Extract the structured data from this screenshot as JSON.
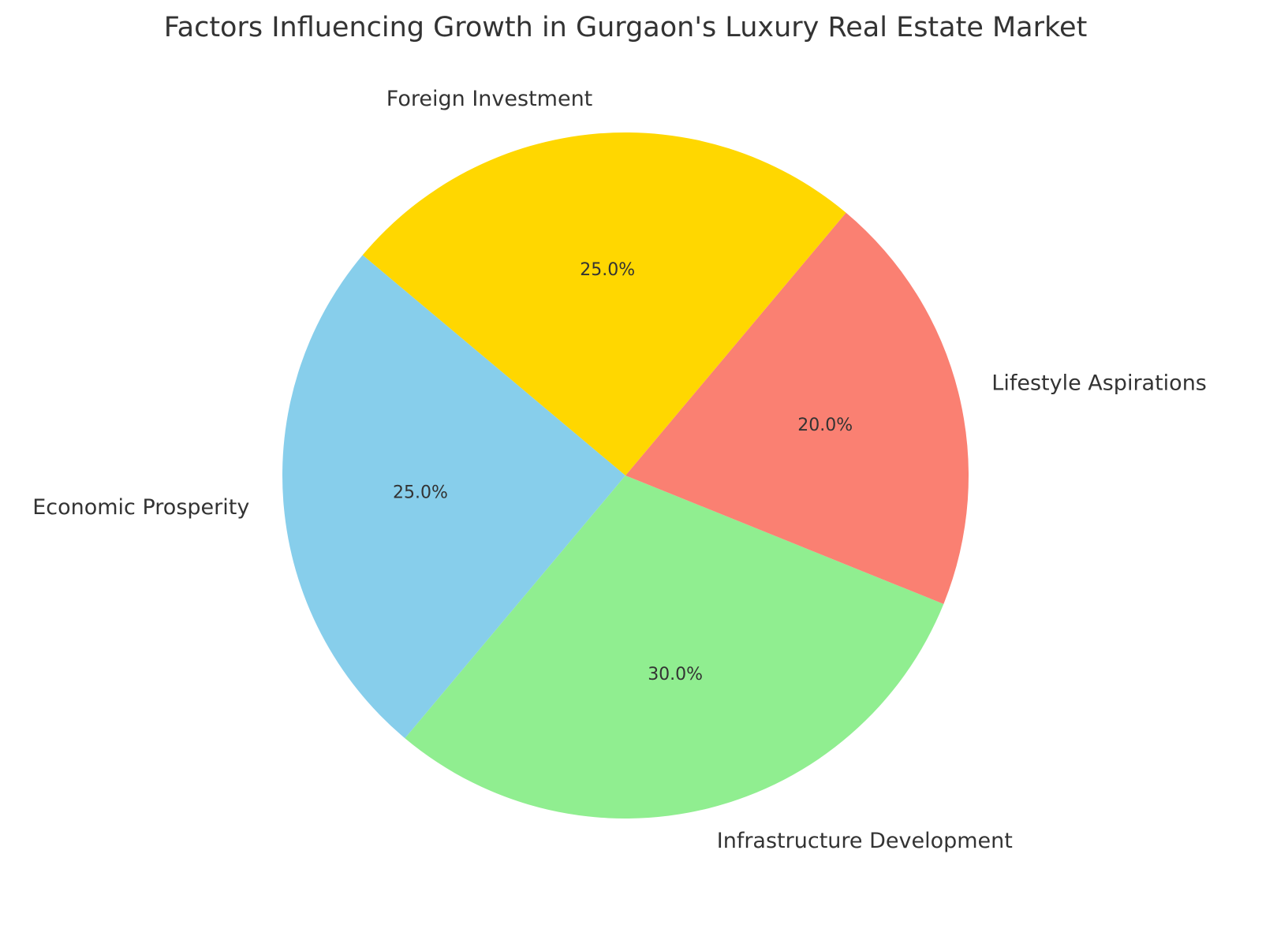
{
  "chart_data": {
    "type": "pie",
    "title": "Factors Influencing Growth in Gurgaon's Luxury Real Estate Market",
    "categories": [
      "Economic Prosperity",
      "Infrastructure Development",
      "Lifestyle Aspirations",
      "Foreign Investment"
    ],
    "values": [
      25,
      30,
      20,
      25
    ],
    "value_labels": [
      "25.0%",
      "30.0%",
      "20.0%",
      "25.0%"
    ],
    "colors": [
      "#87ceeb",
      "#90ee90",
      "#fa8072",
      "#ffd700"
    ]
  }
}
